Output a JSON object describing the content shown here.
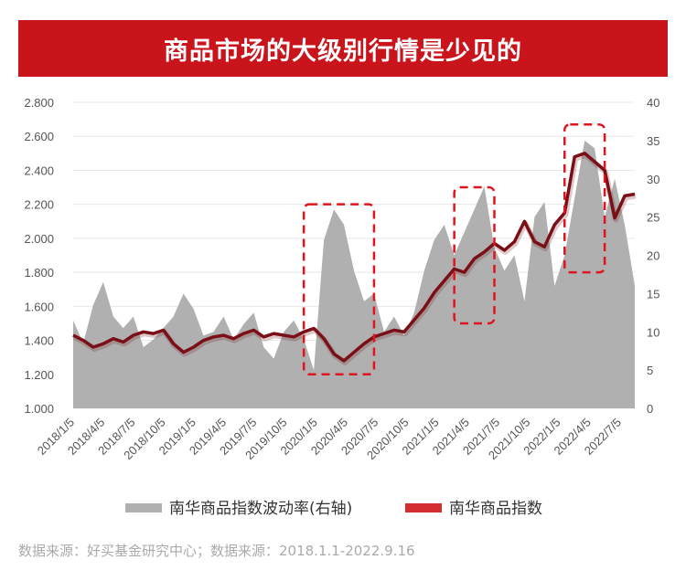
{
  "header": {
    "title": "商品市场的大级别行情是少见的"
  },
  "chart_data": {
    "type": "line",
    "title": "商品市场的大级别行情是少见的",
    "xlabel": "",
    "ylabel_left": "",
    "ylabel_right": "",
    "x_tick_labels": [
      "2018/1/5",
      "2018/4/5",
      "2018/7/5",
      "2018/10/5",
      "2019/1/5",
      "2019/4/5",
      "2019/7/5",
      "2019/10/5",
      "2020/1/5",
      "2020/4/5",
      "2020/7/5",
      "2020/10/5",
      "2021/1/5",
      "2021/4/5",
      "2021/7/5",
      "2021/10/5",
      "2022/1/5",
      "2022/4/5",
      "2022/7/5"
    ],
    "y_left_ticks": [
      "1.000",
      "1.200",
      "1.400",
      "1.600",
      "1.800",
      "2.000",
      "2.200",
      "2.400",
      "2.600",
      "2.800"
    ],
    "y_right_ticks": [
      "0",
      "5",
      "10",
      "15",
      "20",
      "25",
      "30",
      "35",
      "40"
    ],
    "ylim_left": [
      1.0,
      2.8
    ],
    "ylim_right": [
      0,
      40
    ],
    "x": [
      "2018/1/5",
      "2018/2/5",
      "2018/3/5",
      "2018/4/5",
      "2018/5/5",
      "2018/6/5",
      "2018/7/5",
      "2018/8/5",
      "2018/9/5",
      "2018/10/5",
      "2018/11/5",
      "2018/12/5",
      "2019/1/5",
      "2019/2/5",
      "2019/3/5",
      "2019/4/5",
      "2019/5/5",
      "2019/6/5",
      "2019/7/5",
      "2019/8/5",
      "2019/9/5",
      "2019/10/5",
      "2019/11/5",
      "2019/12/5",
      "2020/1/5",
      "2020/2/5",
      "2020/3/5",
      "2020/4/5",
      "2020/5/5",
      "2020/6/5",
      "2020/7/5",
      "2020/8/5",
      "2020/9/5",
      "2020/10/5",
      "2020/11/5",
      "2020/12/5",
      "2021/1/5",
      "2021/2/5",
      "2021/3/5",
      "2021/4/5",
      "2021/5/5",
      "2021/6/5",
      "2021/7/5",
      "2021/8/5",
      "2021/9/5",
      "2021/10/5",
      "2021/11/5",
      "2021/12/5",
      "2022/1/5",
      "2022/2/5",
      "2022/3/5",
      "2022/4/5",
      "2022/5/5",
      "2022/6/5",
      "2022/7/5",
      "2022/8/5",
      "2022/9/16"
    ],
    "series": [
      {
        "name": "南华商品指数波动率(右轴)",
        "axis": "right",
        "kind": "area",
        "color": "#b0b0b0",
        "values": [
          11.5,
          8.5,
          13.5,
          16.5,
          12.0,
          10.5,
          12.0,
          8.0,
          9.0,
          10.5,
          12.0,
          15.0,
          13.0,
          9.5,
          10.0,
          12.0,
          9.0,
          11.0,
          12.5,
          8.0,
          6.5,
          10.0,
          11.5,
          9.0,
          5.0,
          22.0,
          26.0,
          24.0,
          18.0,
          14.0,
          15.0,
          10.0,
          12.0,
          9.5,
          12.5,
          18.0,
          22.0,
          24.0,
          20.0,
          23.0,
          26.0,
          29.0,
          21.0,
          18.0,
          20.0,
          14.0,
          25.0,
          27.0,
          16.0,
          20.0,
          27.5,
          35.0,
          34.0,
          25.0,
          30.0,
          24.0,
          16.0
        ]
      },
      {
        "name": "南华商品指数",
        "axis": "left",
        "kind": "line",
        "color": "#7a0f17",
        "values": [
          1.43,
          1.4,
          1.36,
          1.38,
          1.41,
          1.39,
          1.43,
          1.45,
          1.44,
          1.46,
          1.38,
          1.33,
          1.36,
          1.4,
          1.42,
          1.43,
          1.41,
          1.44,
          1.46,
          1.42,
          1.44,
          1.43,
          1.42,
          1.45,
          1.47,
          1.41,
          1.32,
          1.28,
          1.33,
          1.38,
          1.42,
          1.44,
          1.46,
          1.45,
          1.52,
          1.59,
          1.68,
          1.75,
          1.82,
          1.8,
          1.88,
          1.92,
          1.97,
          1.93,
          1.98,
          2.1,
          1.98,
          1.95,
          2.08,
          2.15,
          2.48,
          2.5,
          2.45,
          2.4,
          2.12,
          2.25,
          2.26
        ]
      }
    ],
    "highlight_boxes": [
      {
        "from": "2019/12/5",
        "to": "2020/7/5",
        "ymin_left": 1.2,
        "ymax_left": 2.2
      },
      {
        "from": "2021/3/5",
        "to": "2021/7/5",
        "ymin_left": 1.5,
        "ymax_left": 2.3
      },
      {
        "from": "2022/2/5",
        "to": "2022/6/5",
        "ymin_left": 1.8,
        "ymax_left": 2.67
      }
    ],
    "grid": true,
    "legend_position": "bottom",
    "legend": [
      "南华商品指数波动率(右轴)",
      "南华商品指数"
    ]
  },
  "source": {
    "text": "数据来源：好买基金研究中心；数据来源：2018.1.1-2022.9.16"
  },
  "colors": {
    "banner": "#c9141c",
    "area": "#b0b0b0",
    "line": "#7a0f17",
    "box": "#e0141c",
    "legend_line": "#d32f2f"
  }
}
